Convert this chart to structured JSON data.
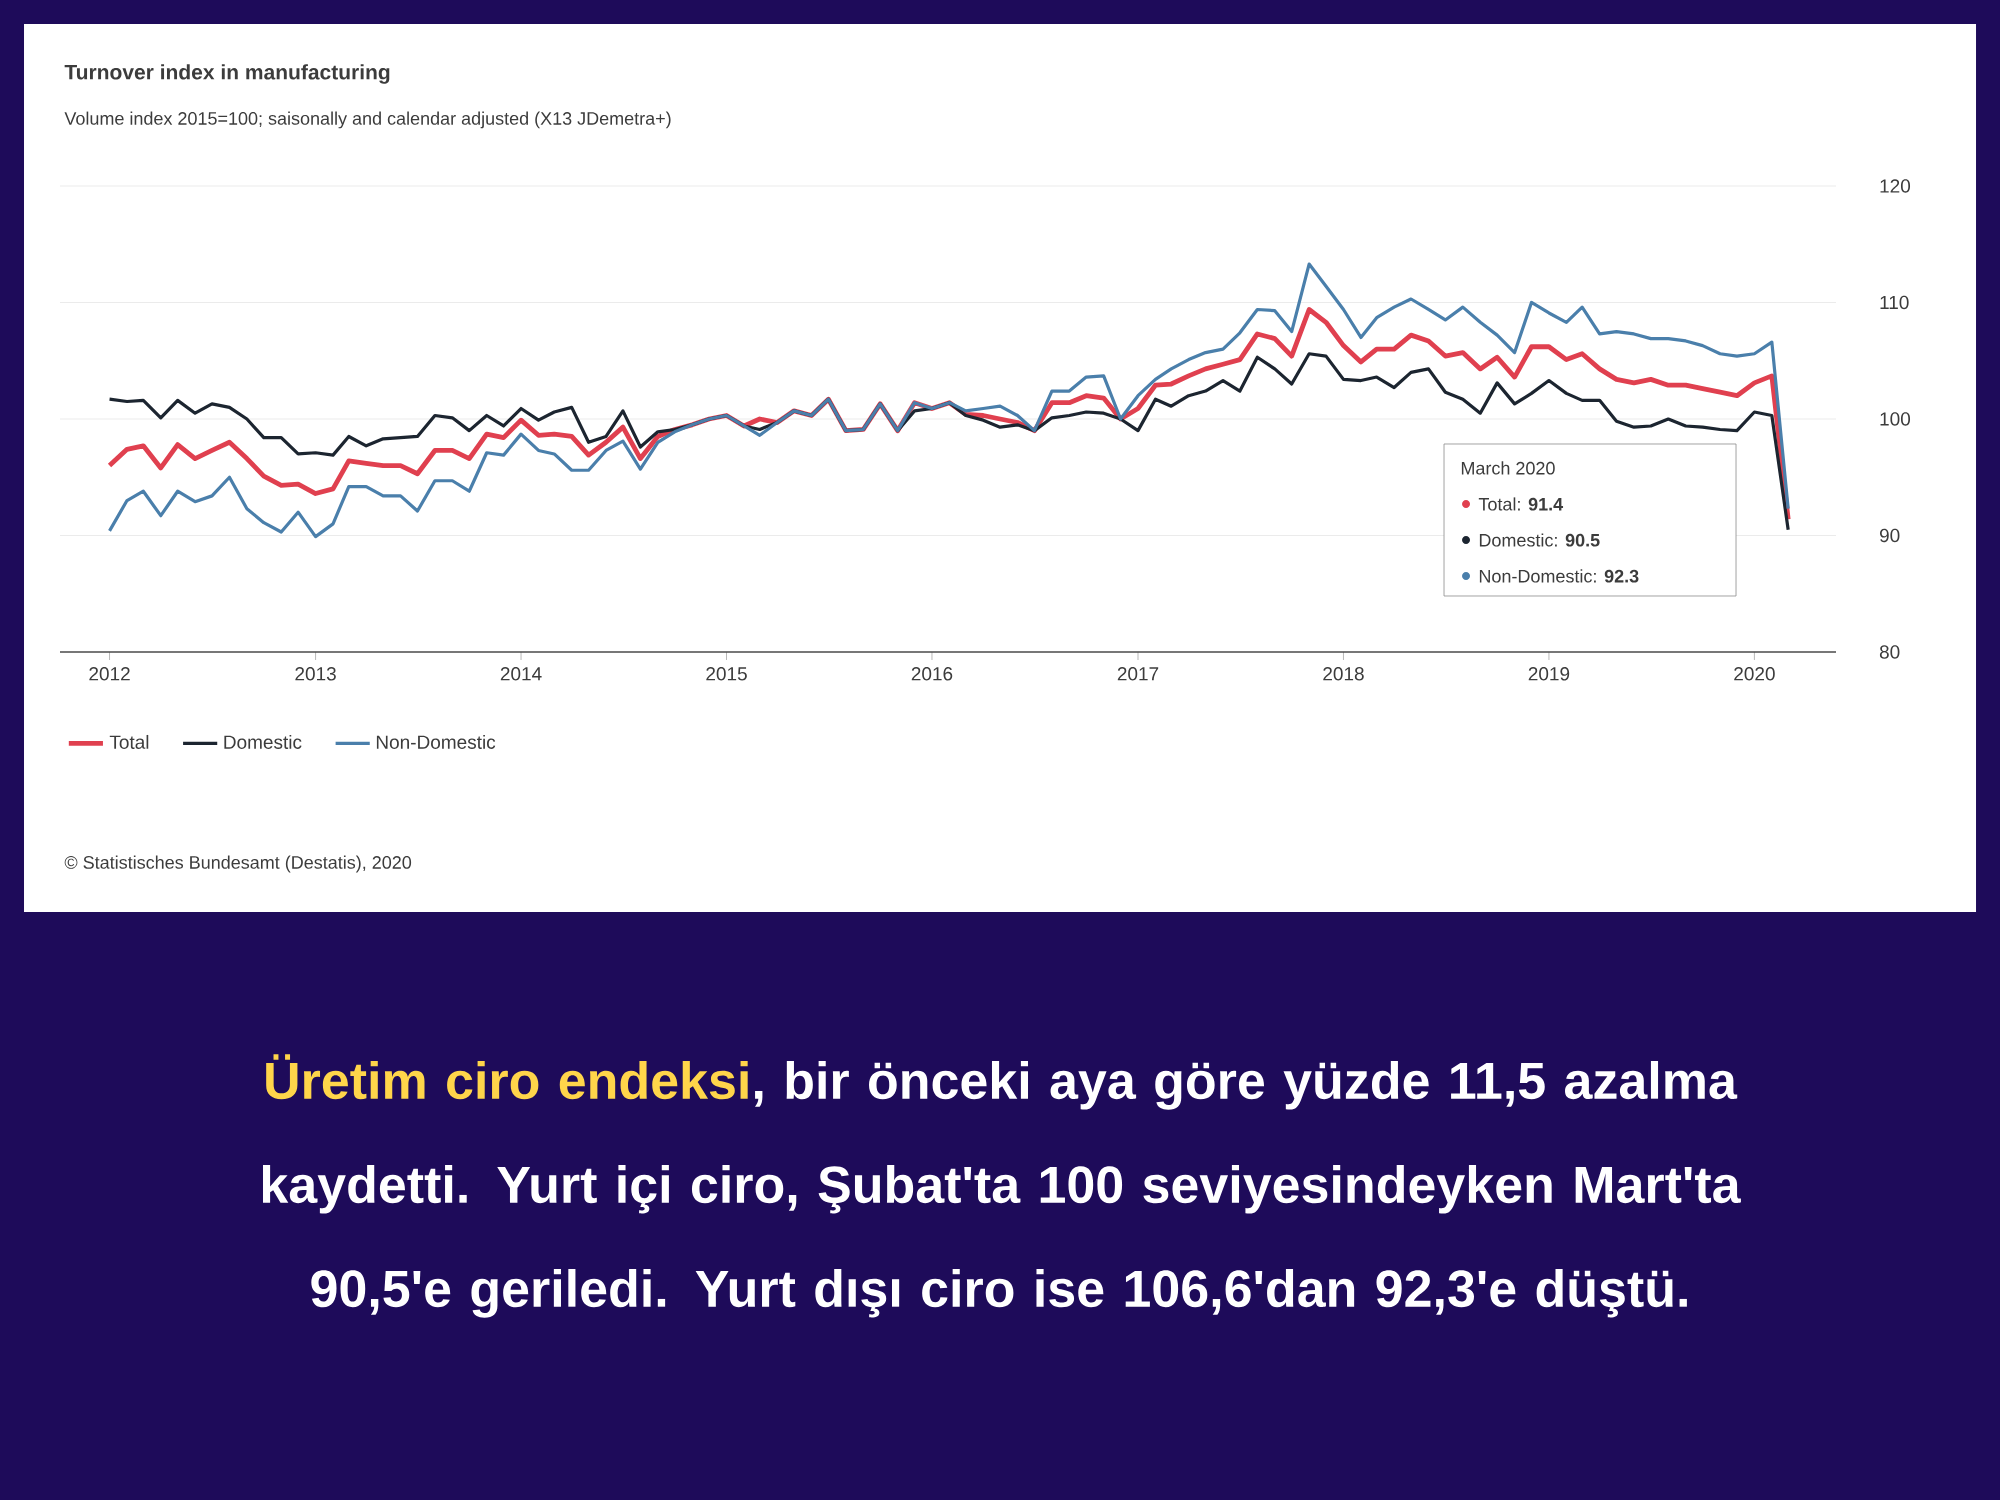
{
  "chart_data": {
    "type": "line",
    "title": "Turnover index in manufacturing",
    "subtitle": "Volume index 2015=100; saisonally and calendar adjusted (X13 JDemetra+)",
    "x": [
      "2012-01",
      "2012-02",
      "2012-03",
      "2012-04",
      "2012-05",
      "2012-06",
      "2012-07",
      "2012-08",
      "2012-09",
      "2012-10",
      "2012-11",
      "2012-12",
      "2013-01",
      "2013-02",
      "2013-03",
      "2013-04",
      "2013-05",
      "2013-06",
      "2013-07",
      "2013-08",
      "2013-09",
      "2013-10",
      "2013-11",
      "2013-12",
      "2014-01",
      "2014-02",
      "2014-03",
      "2014-04",
      "2014-05",
      "2014-06",
      "2014-07",
      "2014-08",
      "2014-09",
      "2014-10",
      "2014-11",
      "2014-12",
      "2015-01",
      "2015-02",
      "2015-03",
      "2015-04",
      "2015-05",
      "2015-06",
      "2015-07",
      "2015-08",
      "2015-09",
      "2015-10",
      "2015-11",
      "2015-12",
      "2016-01",
      "2016-02",
      "2016-03",
      "2016-04",
      "2016-05",
      "2016-06",
      "2016-07",
      "2016-08",
      "2016-09",
      "2016-10",
      "2016-11",
      "2016-12",
      "2017-01",
      "2017-02",
      "2017-03",
      "2017-04",
      "2017-05",
      "2017-06",
      "2017-07",
      "2017-08",
      "2017-09",
      "2017-10",
      "2017-11",
      "2017-12",
      "2018-01",
      "2018-02",
      "2018-03",
      "2018-04",
      "2018-05",
      "2018-06",
      "2018-07",
      "2018-08",
      "2018-09",
      "2018-10",
      "2018-11",
      "2018-12",
      "2019-01",
      "2019-02",
      "2019-03",
      "2019-04",
      "2019-05",
      "2019-06",
      "2019-07",
      "2019-08",
      "2019-09",
      "2019-10",
      "2019-11",
      "2019-12",
      "2020-01",
      "2020-02",
      "2020-03"
    ],
    "series": [
      {
        "name": "Total",
        "color": "#e0404f",
        "values": [
          96.0,
          97.4,
          97.7,
          95.8,
          97.8,
          96.6,
          97.3,
          98.0,
          96.6,
          95.1,
          94.3,
          94.4,
          93.6,
          94.0,
          96.4,
          96.2,
          96.0,
          96.0,
          95.3,
          97.3,
          97.3,
          96.6,
          98.7,
          98.4,
          99.9,
          98.6,
          98.7,
          98.5,
          96.9,
          98.0,
          99.3,
          96.6,
          98.5,
          99.1,
          99.5,
          100.0,
          100.3,
          99.4,
          100.0,
          99.7,
          100.7,
          100.3,
          101.7,
          99.0,
          99.1,
          101.3,
          99.0,
          101.4,
          100.9,
          101.4,
          100.4,
          100.3,
          100.0,
          99.7,
          99.0,
          101.4,
          101.4,
          102.0,
          101.8,
          100.0,
          100.9,
          102.9,
          103.0,
          103.7,
          104.3,
          104.7,
          105.1,
          107.3,
          106.9,
          105.4,
          109.4,
          108.3,
          106.3,
          104.9,
          106.0,
          106.0,
          107.2,
          106.7,
          105.4,
          105.7,
          104.3,
          105.3,
          103.6,
          106.2,
          106.2,
          105.1,
          105.6,
          104.3,
          103.4,
          103.1,
          103.4,
          102.9,
          102.9,
          102.6,
          102.3,
          102.0,
          103.1,
          103.7,
          91.4
        ]
      },
      {
        "name": "Domestic",
        "color": "#1c2530",
        "values": [
          101.7,
          101.5,
          101.6,
          100.1,
          101.6,
          100.5,
          101.3,
          101.0,
          100.0,
          98.4,
          98.4,
          97.0,
          97.1,
          96.9,
          98.5,
          97.7,
          98.3,
          98.4,
          98.5,
          100.3,
          100.1,
          99.0,
          100.3,
          99.4,
          100.9,
          99.9,
          100.6,
          101.0,
          98.0,
          98.5,
          100.7,
          97.6,
          98.9,
          99.1,
          99.5,
          100.0,
          100.3,
          99.4,
          99.1,
          99.7,
          100.7,
          100.3,
          101.7,
          99.0,
          99.1,
          101.3,
          99.0,
          100.7,
          100.9,
          101.4,
          100.3,
          99.9,
          99.3,
          99.5,
          99.0,
          100.1,
          100.3,
          100.6,
          100.5,
          100.0,
          99.0,
          101.7,
          101.1,
          102.0,
          102.4,
          103.3,
          102.4,
          105.3,
          104.3,
          103.0,
          105.6,
          105.4,
          103.4,
          103.3,
          103.6,
          102.7,
          104.0,
          104.3,
          102.3,
          101.7,
          100.5,
          103.1,
          101.3,
          102.2,
          103.3,
          102.2,
          101.6,
          101.6,
          99.8,
          99.3,
          99.4,
          100.0,
          99.4,
          99.3,
          99.1,
          99.0,
          100.6,
          100.3,
          90.5
        ]
      },
      {
        "name": "Non-Domestic",
        "color": "#4a7fab",
        "values": [
          90.4,
          93.0,
          93.8,
          91.7,
          93.8,
          92.9,
          93.4,
          95.0,
          92.3,
          91.1,
          90.3,
          92.0,
          89.9,
          91.0,
          94.2,
          94.2,
          93.4,
          93.4,
          92.1,
          94.7,
          94.7,
          93.8,
          97.1,
          96.9,
          98.7,
          97.3,
          97.0,
          95.6,
          95.6,
          97.3,
          98.1,
          95.7,
          98.0,
          98.9,
          99.5,
          100.0,
          100.3,
          99.4,
          98.6,
          99.7,
          100.7,
          100.3,
          101.7,
          99.0,
          99.1,
          101.3,
          99.0,
          101.4,
          100.9,
          101.4,
          100.7,
          100.9,
          101.1,
          100.3,
          99.0,
          102.4,
          102.4,
          103.6,
          103.7,
          100.0,
          102.0,
          103.4,
          104.3,
          105.1,
          105.7,
          106.0,
          107.4,
          109.4,
          109.3,
          107.5,
          113.3,
          111.4,
          109.4,
          107.0,
          108.7,
          109.6,
          110.3,
          109.4,
          108.5,
          109.6,
          108.3,
          107.2,
          105.7,
          110.0,
          109.1,
          108.3,
          109.6,
          107.3,
          107.5,
          107.3,
          106.9,
          106.9,
          106.7,
          106.3,
          105.6,
          105.4,
          105.6,
          106.6,
          92.3
        ]
      }
    ],
    "xlim": [
      "2011-10-05",
      "2020-05-25"
    ],
    "xticks": [
      "2012",
      "2013",
      "2014",
      "2015",
      "2016",
      "2017",
      "2018",
      "2019",
      "2020"
    ],
    "ylim": [
      80,
      120
    ],
    "yticks": [
      80,
      90,
      100,
      110,
      120
    ],
    "grid": "y",
    "legend": "bottom",
    "annotations": [
      "March 2020",
      "Total: **91.4**",
      "Domestic: **90.5**",
      "Non-Domestic: **92.3**",
      "© Statistisches Bundesamt (Destatis), 2020",
      "Üretim ciro endeksi",
      ", bir önceki aya göre yüzde 11,5 azalma kaydetti. Yurt içi ciro, Şubat'ta 100 seviyesindeyken Mart'ta 90,5'e geriledi. Yurt dışı ciro ise 106,6'dan 92,3'e düştü."
    ]
  }
}
